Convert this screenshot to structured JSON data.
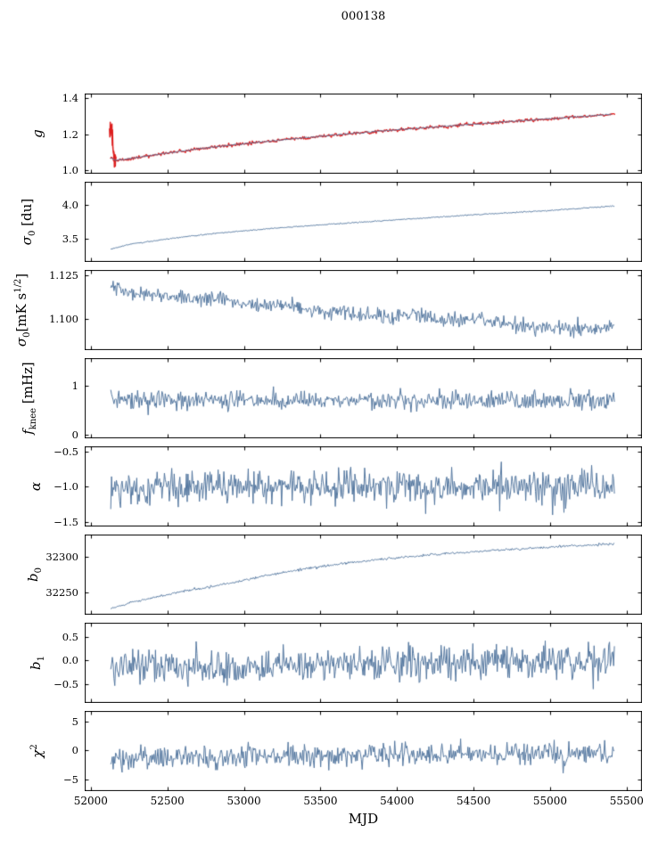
{
  "title": "000138",
  "colors": {
    "line": "#54779f",
    "overlay": "#dd1d1d",
    "frame": "#000000",
    "text": "#000000",
    "background": "#ffffff"
  },
  "chart_data": {
    "type": "line",
    "title": "000138",
    "xlabel": "MJD",
    "x_axis": {
      "lim": [
        51960,
        55600
      ],
      "ticks": [
        52000,
        52500,
        53000,
        53500,
        54000,
        54500,
        55000,
        55500
      ],
      "tick_labels": [
        "52000",
        "52500",
        "53000",
        "53500",
        "54000",
        "54500",
        "55000",
        "55500"
      ]
    },
    "x_data_range": [
      52130,
      55420
    ],
    "subplots": [
      {
        "id": "g",
        "ylabel": [
          {
            "t": "g",
            "k": "i"
          }
        ],
        "ylim": [
          0.978,
          1.427
        ],
        "yticks": [
          1.0,
          1.2,
          1.4
        ],
        "ytick_labels": [
          "1.0",
          "1.2",
          "1.4"
        ],
        "series": [
          {
            "name": "g-red-transient",
            "color": "overlay",
            "lw": 1.5,
            "x0": 52122,
            "x1": 52165,
            "n": 36,
            "noise": 0.035,
            "seed": 11,
            "anchors": [
              [
                52122,
                1.2
              ],
              [
                52130,
                1.245
              ],
              [
                52138,
                1.215
              ],
              [
                52146,
                1.1
              ],
              [
                52155,
                1.072
              ],
              [
                52165,
                1.06
              ]
            ]
          },
          {
            "name": "g-red",
            "color": "overlay",
            "lw": 1.3,
            "x0": 52128,
            "x1": 55425,
            "n": 620,
            "noise": 0.0045,
            "seed": 12,
            "anchors": [
              [
                52130,
                1.068
              ],
              [
                52160,
                1.055
              ],
              [
                52220,
                1.058
              ],
              [
                52350,
                1.075
              ],
              [
                52500,
                1.094
              ],
              [
                52700,
                1.117
              ],
              [
                52900,
                1.137
              ],
              [
                53100,
                1.155
              ],
              [
                53300,
                1.172
              ],
              [
                53500,
                1.188
              ],
              [
                53700,
                1.203
              ],
              [
                53900,
                1.217
              ],
              [
                54100,
                1.231
              ],
              [
                54300,
                1.243
              ],
              [
                54500,
                1.256
              ],
              [
                54700,
                1.268
              ],
              [
                54900,
                1.28
              ],
              [
                55050,
                1.289
              ],
              [
                55200,
                1.298
              ],
              [
                55320,
                1.306
              ],
              [
                55425,
                1.313
              ]
            ]
          },
          {
            "name": "g-fit-blue",
            "color": "line",
            "lw": 1,
            "x0": 52130,
            "x1": 55400,
            "n": 620,
            "noise": 0.0018,
            "seed": 13,
            "anchors": [
              [
                52130,
                1.068
              ],
              [
                52160,
                1.055
              ],
              [
                52220,
                1.058
              ],
              [
                52350,
                1.075
              ],
              [
                52500,
                1.094
              ],
              [
                52700,
                1.117
              ],
              [
                52900,
                1.137
              ],
              [
                53100,
                1.155
              ],
              [
                53300,
                1.172
              ],
              [
                53500,
                1.188
              ],
              [
                53700,
                1.203
              ],
              [
                53900,
                1.217
              ],
              [
                54100,
                1.231
              ],
              [
                54300,
                1.243
              ],
              [
                54500,
                1.256
              ],
              [
                54700,
                1.268
              ],
              [
                54900,
                1.28
              ],
              [
                55050,
                1.289
              ],
              [
                55200,
                1.298
              ],
              [
                55320,
                1.306
              ],
              [
                55400,
                1.311
              ]
            ]
          }
        ]
      },
      {
        "id": "sigma0-du",
        "ylabel": [
          {
            "t": "σ",
            "k": "i"
          },
          {
            "t": "0",
            "k": "sub"
          },
          {
            "t": " [du]",
            "k": "n"
          }
        ],
        "ylim": [
          3.16,
          4.35
        ],
        "yticks": [
          3.5,
          4.0
        ],
        "ytick_labels": [
          "3.5",
          "4.0"
        ],
        "series": [
          {
            "name": "sigma0-du",
            "color": "line",
            "lw": 1,
            "x0": 52130,
            "x1": 55420,
            "n": 620,
            "noise": 0.004,
            "seed": 21,
            "anchors": [
              [
                52130,
                3.35
              ],
              [
                52250,
                3.42
              ],
              [
                52400,
                3.47
              ],
              [
                52600,
                3.53
              ],
              [
                52800,
                3.58
              ],
              [
                53000,
                3.62
              ],
              [
                53200,
                3.66
              ],
              [
                53500,
                3.71
              ],
              [
                53800,
                3.755
              ],
              [
                54100,
                3.8
              ],
              [
                54400,
                3.845
              ],
              [
                54700,
                3.885
              ],
              [
                55000,
                3.925
              ],
              [
                55200,
                3.955
              ],
              [
                55420,
                3.99
              ]
            ]
          }
        ]
      },
      {
        "id": "sigma0-mks",
        "ylabel": [
          {
            "t": "σ",
            "k": "i"
          },
          {
            "t": "0",
            "k": "sub"
          },
          {
            "t": "[mK s",
            "k": "n"
          },
          {
            "t": "1/2",
            "k": "sup"
          },
          {
            "t": "]",
            "k": "n"
          }
        ],
        "ylim": [
          1.082,
          1.128
        ],
        "yticks": [
          1.1,
          1.125
        ],
        "ytick_labels": [
          "1.100",
          "1.125"
        ],
        "series": [
          {
            "name": "sigma0-mks",
            "color": "line",
            "lw": 1,
            "x0": 52130,
            "x1": 55420,
            "n": 620,
            "noise": 0.0022,
            "seed": 31,
            "anchors": [
              [
                52130,
                1.1175
              ],
              [
                52250,
                1.1155
              ],
              [
                52400,
                1.1145
              ],
              [
                52550,
                1.1125
              ],
              [
                52700,
                1.1105
              ],
              [
                52850,
                1.1115
              ],
              [
                53000,
                1.1085
              ],
              [
                53150,
                1.1075
              ],
              [
                53300,
                1.1075
              ],
              [
                53450,
                1.104
              ],
              [
                53600,
                1.1035
              ],
              [
                53750,
                1.1025
              ],
              [
                53900,
                1.1015
              ],
              [
                54050,
                1.1025
              ],
              [
                54200,
                1.1005
              ],
              [
                54350,
                1.0995
              ],
              [
                54500,
                1.1005
              ],
              [
                54650,
                1.0985
              ],
              [
                54800,
                1.0965
              ],
              [
                54950,
                1.0955
              ],
              [
                55100,
                1.0945
              ],
              [
                55250,
                1.094
              ],
              [
                55420,
                1.0955
              ]
            ]
          }
        ]
      },
      {
        "id": "fknee",
        "ylabel": [
          {
            "t": "f",
            "k": "i"
          },
          {
            "t": "knee",
            "k": "sub"
          },
          {
            "t": " [mHz]",
            "k": "n"
          }
        ],
        "ylim": [
          -0.08,
          1.58
        ],
        "yticks": [
          0,
          1
        ],
        "ytick_labels": [
          "0",
          "1"
        ],
        "series": [
          {
            "name": "fknee",
            "color": "line",
            "lw": 1,
            "x0": 52130,
            "x1": 55420,
            "n": 620,
            "noise": 0.1,
            "seed": 41,
            "anchors": [
              [
                52130,
                0.8
              ],
              [
                52200,
                0.72
              ],
              [
                52500,
                0.7
              ],
              [
                53000,
                0.71
              ],
              [
                53500,
                0.7
              ],
              [
                54000,
                0.72
              ],
              [
                54500,
                0.71
              ],
              [
                55000,
                0.7
              ],
              [
                55420,
                0.7
              ]
            ]
          }
        ]
      },
      {
        "id": "alpha",
        "ylabel": [
          {
            "t": "α",
            "k": "i"
          }
        ],
        "ylim": [
          -1.56,
          -0.43
        ],
        "yticks": [
          -1.5,
          -1.0,
          -0.5
        ],
        "ytick_labels": [
          "−1.5",
          "−1.0",
          "−0.5"
        ],
        "series": [
          {
            "name": "alpha",
            "color": "line",
            "lw": 1,
            "x0": 52130,
            "x1": 55420,
            "n": 620,
            "noise": 0.12,
            "seed": 51,
            "anchors": [
              [
                52130,
                -1.02
              ],
              [
                52400,
                -1.0
              ],
              [
                53000,
                -1.0
              ],
              [
                54000,
                -1.0
              ],
              [
                55420,
                -1.0
              ]
            ]
          }
        ]
      },
      {
        "id": "b0",
        "ylabel": [
          {
            "t": "b",
            "k": "i"
          },
          {
            "t": "0",
            "k": "sub"
          }
        ],
        "ylim": [
          32220,
          32330
        ],
        "yticks": [
          32250,
          32300
        ],
        "ytick_labels": [
          "32250",
          "32300"
        ],
        "series": [
          {
            "name": "b0",
            "color": "line",
            "lw": 1,
            "x0": 52130,
            "x1": 55420,
            "n": 620,
            "noise": 0.8,
            "seed": 61,
            "anchors": [
              [
                52130,
                32228
              ],
              [
                52250,
                32236
              ],
              [
                52400,
                32243
              ],
              [
                52600,
                32252
              ],
              [
                52800,
                32259
              ],
              [
                53000,
                32267
              ],
              [
                53200,
                32276
              ],
              [
                53400,
                32283
              ],
              [
                53600,
                32289
              ],
              [
                53800,
                32294
              ],
              [
                54000,
                32298
              ],
              [
                54200,
                32302
              ],
              [
                54400,
                32305
              ],
              [
                54600,
                32308
              ],
              [
                54800,
                32310
              ],
              [
                55000,
                32313
              ],
              [
                55200,
                32315
              ],
              [
                55420,
                32317
              ]
            ]
          }
        ]
      },
      {
        "id": "b1",
        "ylabel": [
          {
            "t": "b",
            "k": "i"
          },
          {
            "t": "1",
            "k": "sub"
          }
        ],
        "ylim": [
          -0.9,
          0.8
        ],
        "yticks": [
          -0.5,
          0.0,
          0.5
        ],
        "ytick_labels": [
          "−0.5",
          "0.0",
          "0.5"
        ],
        "series": [
          {
            "name": "b1",
            "color": "line",
            "lw": 1,
            "x0": 52130,
            "x1": 55420,
            "n": 620,
            "noise": 0.18,
            "seed": 71,
            "anchors": [
              [
                52130,
                -0.15
              ],
              [
                52600,
                -0.13
              ],
              [
                53200,
                -0.1
              ],
              [
                53800,
                -0.07
              ],
              [
                54400,
                -0.04
              ],
              [
                55420,
                0.0
              ]
            ]
          }
        ]
      },
      {
        "id": "chi2",
        "ylabel": [
          {
            "t": "χ",
            "k": "i"
          },
          {
            "t": "2",
            "k": "sup"
          }
        ],
        "ylim": [
          -7.0,
          6.8
        ],
        "yticks": [
          -5,
          0,
          5
        ],
        "ytick_labels": [
          "−5",
          "0",
          "5"
        ],
        "series": [
          {
            "name": "chi2",
            "color": "line",
            "lw": 1,
            "x0": 52130,
            "x1": 55420,
            "n": 620,
            "noise": 0.95,
            "seed": 81,
            "anchors": [
              [
                52130,
                -1.4
              ],
              [
                52600,
                -1.2
              ],
              [
                53200,
                -1.0
              ],
              [
                54000,
                -0.85
              ],
              [
                54800,
                -0.7
              ],
              [
                55420,
                -0.6
              ]
            ]
          }
        ]
      }
    ]
  }
}
